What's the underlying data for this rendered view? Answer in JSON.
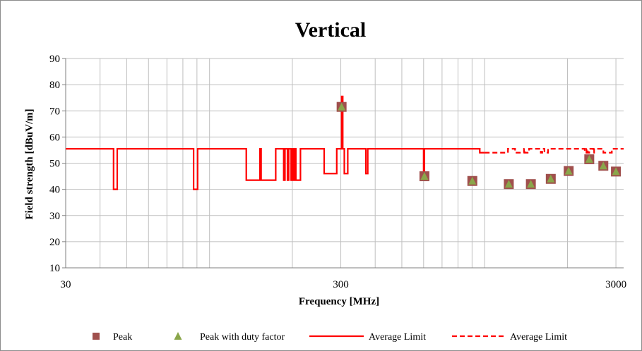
{
  "chart_data": {
    "type": "line",
    "title": "Vertical",
    "xlabel": "Frequency [MHz]",
    "ylabel": "Field strength [dBuV/m]",
    "x_scale": "log",
    "xlim": [
      30,
      3200
    ],
    "ylim": [
      10,
      90
    ],
    "x_ticks": [
      30,
      300,
      3000
    ],
    "x_tick_labels": [
      "30",
      "300",
      "3000"
    ],
    "y_ticks": [
      10,
      20,
      30,
      40,
      50,
      60,
      70,
      80,
      90
    ],
    "grid": true,
    "legend_position": "bottom",
    "series": [
      {
        "name": "Peak",
        "kind": "marker",
        "marker": "square",
        "color": "#a0504d",
        "points": [
          [
            302,
            71.5
          ],
          [
            604,
            45
          ],
          [
            902,
            43.2
          ],
          [
            1224,
            42
          ],
          [
            1472,
            42
          ],
          [
            1739,
            44
          ],
          [
            2020,
            47
          ],
          [
            2400,
            51.5
          ],
          [
            2700,
            49
          ],
          [
            3000,
            46.8
          ]
        ]
      },
      {
        "name": "Peak with duty factor",
        "kind": "marker",
        "marker": "triangle",
        "color": "#8aa64a",
        "points": [
          [
            302,
            71.5
          ],
          [
            604,
            45
          ],
          [
            902,
            43.2
          ],
          [
            1224,
            42
          ],
          [
            1472,
            42
          ],
          [
            1739,
            44
          ],
          [
            2020,
            47
          ],
          [
            2400,
            51.5
          ],
          [
            2700,
            49
          ],
          [
            3000,
            46.8
          ]
        ]
      },
      {
        "name": "Average Limit",
        "kind": "line",
        "dash": "solid",
        "color": "#ff0000",
        "points": [
          [
            30,
            55.5
          ],
          [
            44.8,
            55.5
          ],
          [
            44.8,
            40
          ],
          [
            46.2,
            40
          ],
          [
            46.2,
            55.5
          ],
          [
            87.5,
            55.5
          ],
          [
            87.5,
            40
          ],
          [
            90.5,
            40
          ],
          [
            90.5,
            55.5
          ],
          [
            136,
            55.5
          ],
          [
            136,
            43.5
          ],
          [
            152.5,
            43.5
          ],
          [
            152.5,
            55.5
          ],
          [
            154,
            55.5
          ],
          [
            154,
            43.5
          ],
          [
            174,
            43.5
          ],
          [
            174,
            55.5
          ],
          [
            186,
            55.5
          ],
          [
            186,
            43.5
          ],
          [
            188,
            43.5
          ],
          [
            188,
            55.5
          ],
          [
            192,
            55.5
          ],
          [
            192,
            43.5
          ],
          [
            194,
            43.5
          ],
          [
            194,
            55.5
          ],
          [
            198,
            55.5
          ],
          [
            198,
            43.5
          ],
          [
            200,
            43.5
          ],
          [
            200,
            55.5
          ],
          [
            202,
            55.5
          ],
          [
            202,
            43.5
          ],
          [
            204,
            43.5
          ],
          [
            204,
            55.5
          ],
          [
            206,
            55.5
          ],
          [
            206,
            43.5
          ],
          [
            214,
            43.5
          ],
          [
            214,
            55.5
          ],
          [
            261,
            55.5
          ],
          [
            261,
            46
          ],
          [
            290,
            46
          ],
          [
            290,
            55.5
          ],
          [
            302,
            55.5
          ],
          [
            302,
            75.5
          ],
          [
            305,
            75.5
          ],
          [
            305,
            55.5
          ],
          [
            309,
            55.5
          ],
          [
            309,
            46
          ],
          [
            318,
            46
          ],
          [
            318,
            55.5
          ],
          [
            370,
            55.5
          ],
          [
            370,
            46
          ],
          [
            376,
            46
          ],
          [
            376,
            55.5
          ],
          [
            600,
            55.5
          ],
          [
            600,
            45
          ],
          [
            604,
            45
          ],
          [
            604,
            55.5
          ],
          [
            960,
            55.5
          ],
          [
            960,
            54
          ],
          [
            1000,
            54
          ]
        ]
      },
      {
        "name": "Average Limit",
        "kind": "line",
        "dash": "dashed",
        "color": "#ff0000",
        "points": [
          [
            1000,
            54
          ],
          [
            1215,
            54
          ],
          [
            1215,
            55.5
          ],
          [
            1290,
            55.5
          ],
          [
            1290,
            54
          ],
          [
            1390,
            54
          ],
          [
            1390,
            55.5
          ],
          [
            1400,
            55.5
          ],
          [
            1400,
            54
          ],
          [
            1450,
            54
          ],
          [
            1450,
            55.5
          ],
          [
            1600,
            55.5
          ],
          [
            1600,
            54
          ],
          [
            1620,
            54
          ],
          [
            1620,
            55.5
          ],
          [
            1650,
            55.5
          ],
          [
            1650,
            54
          ],
          [
            1700,
            54
          ],
          [
            1700,
            55.5
          ],
          [
            2310,
            55.5
          ],
          [
            2310,
            54
          ],
          [
            2345,
            54
          ],
          [
            2345,
            55.5
          ],
          [
            2370,
            55.5
          ],
          [
            2370,
            54
          ],
          [
            2400,
            54
          ],
          [
            2400,
            55.5
          ],
          [
            2483.5,
            55.5
          ],
          [
            2483.5,
            54
          ],
          [
            2500,
            54
          ],
          [
            2500,
            55.5
          ],
          [
            2700,
            55.5
          ],
          [
            2700,
            54
          ],
          [
            2900,
            54
          ],
          [
            2900,
            55.5
          ],
          [
            3200,
            55.5
          ]
        ]
      }
    ]
  }
}
